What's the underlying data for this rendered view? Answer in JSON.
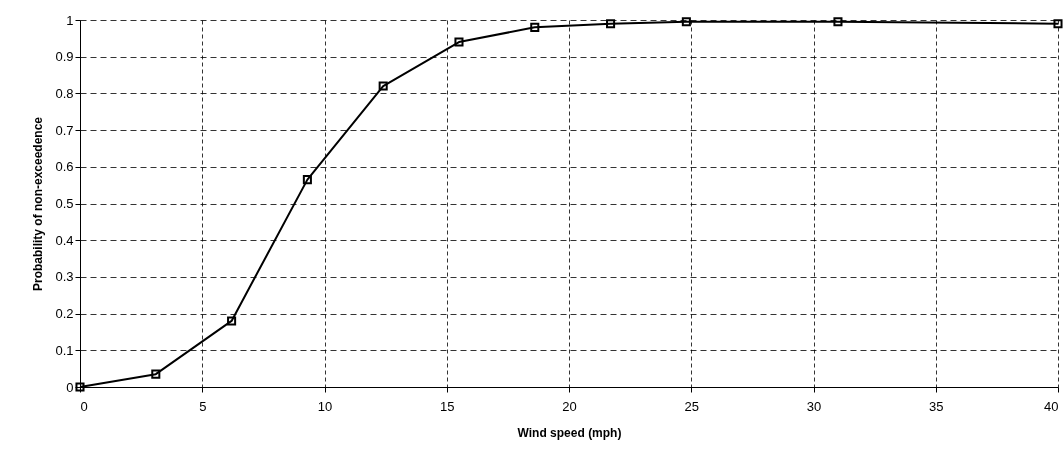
{
  "chart_data": {
    "type": "line",
    "xlabel": "Wind speed (mph)",
    "ylabel": "Probability of non-exceedence",
    "x": [
      0,
      3.1,
      6.2,
      9.3,
      12.4,
      15.5,
      18.6,
      21.7,
      24.8,
      31,
      40
    ],
    "series": [
      {
        "color": "#000000",
        "values": [
          0,
          0.035,
          0.18,
          0.565,
          0.82,
          0.94,
          0.98,
          0.99,
          0.995,
          0.995,
          0.99
        ]
      }
    ],
    "xlim": [
      0,
      40
    ],
    "xticks": [
      0,
      5,
      10,
      15,
      20,
      25,
      30,
      35,
      40
    ],
    "ylim": [
      0,
      1
    ],
    "yticks": [
      0,
      0.1,
      0.2,
      0.3,
      0.4,
      0.5,
      0.6,
      0.7,
      0.8,
      0.9,
      1
    ],
    "grid": true,
    "marker": "square",
    "line_style": "solid"
  }
}
